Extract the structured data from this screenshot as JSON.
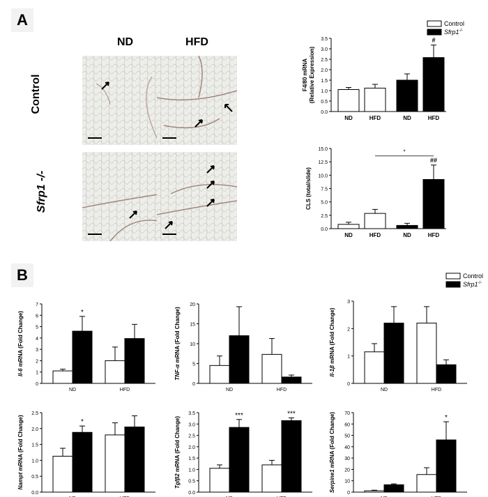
{
  "panelA": {
    "letter": "A",
    "col_headers": [
      "ND",
      "HFD"
    ],
    "row_headers": [
      "Control",
      "Sfrp1 -/-"
    ]
  },
  "panelB": {
    "letter": "B"
  },
  "legend": {
    "control": "Control",
    "sfrp1": "Sfrp1",
    "sfrp1_sup": "-/-"
  },
  "colors": {
    "control": "#ffffff",
    "sfrp1": "#000000"
  },
  "chart_data": [
    {
      "id": "f480",
      "type": "bar",
      "ylabel": [
        "F4/80 mRNA",
        "(Relative Expression)"
      ],
      "ylim": [
        0,
        3.5
      ],
      "yticks": [
        "0.0",
        "0.5",
        "1.0",
        "1.5",
        "2.0",
        "2.5",
        "3.0",
        "3.5"
      ],
      "bars": [
        {
          "label": "ND",
          "group": "control",
          "value": 1.05,
          "err": 0.1
        },
        {
          "label": "HFD",
          "group": "control",
          "value": 1.12,
          "err": 0.18
        },
        {
          "label": "ND",
          "group": "sfrp1",
          "value": 1.5,
          "err": 0.3
        },
        {
          "label": "HFD",
          "group": "sfrp1",
          "value": 2.58,
          "err": 0.6
        }
      ],
      "annotations": [
        {
          "bar": 3,
          "text": "#"
        }
      ]
    },
    {
      "id": "cls",
      "type": "bar",
      "ylabel": [
        "CLS (total/slide)"
      ],
      "ylim": [
        0,
        15
      ],
      "yticks": [
        "0.0",
        "2.5",
        "5.0",
        "7.5",
        "10.0",
        "12.5",
        "15.0"
      ],
      "bars": [
        {
          "label": "ND",
          "group": "control",
          "value": 0.8,
          "err": 0.4
        },
        {
          "label": "HFD",
          "group": "control",
          "value": 2.85,
          "err": 0.75
        },
        {
          "label": "ND",
          "group": "sfrp1",
          "value": 0.6,
          "err": 0.4
        },
        {
          "label": "HFD",
          "group": "sfrp1",
          "value": 9.2,
          "err": 2.7
        }
      ],
      "annotations": [
        {
          "bar": 3,
          "text": "##"
        }
      ],
      "bracket": {
        "from": 1,
        "to": 3,
        "y": 13.6,
        "text": "*"
      }
    },
    {
      "id": "il6",
      "type": "bar",
      "italic": "Il-6",
      "rest": " mRNA (Fold Change)",
      "ylim": [
        0,
        7
      ],
      "yticks": [
        "0",
        "1",
        "2",
        "3",
        "4",
        "5",
        "6",
        "7"
      ],
      "categories": [
        "ND",
        "HFD"
      ],
      "series": [
        {
          "name": "Control",
          "values": [
            1.1,
            2.0
          ],
          "err": [
            0.15,
            1.2
          ]
        },
        {
          "name": "Sfrp1",
          "values": [
            4.6,
            3.95
          ],
          "err": [
            1.3,
            1.25
          ]
        }
      ],
      "annotations": [
        {
          "cat": 0,
          "series": 1,
          "text": "*"
        }
      ]
    },
    {
      "id": "tnfa",
      "type": "bar",
      "italic": "TNF-α",
      "rest": " mRNA (Fold Change)",
      "ylim": [
        0,
        20
      ],
      "yticks": [
        "0",
        "5",
        "10",
        "15",
        "20"
      ],
      "categories": [
        "ND",
        "HFD"
      ],
      "series": [
        {
          "name": "Control",
          "values": [
            4.5,
            7.3
          ],
          "err": [
            2.4,
            4.0
          ]
        },
        {
          "name": "Sfrp1",
          "values": [
            12.0,
            1.6
          ],
          "err": [
            7.3,
            0.5
          ]
        }
      ],
      "annotations": []
    },
    {
      "id": "il1b",
      "type": "bar",
      "italic": "Il-1β",
      "rest": " mRNA (Fold Change)",
      "ylim": [
        0,
        3
      ],
      "yticks": [
        "0",
        "1",
        "2",
        "3"
      ],
      "categories": [
        "ND",
        "HFD"
      ],
      "series": [
        {
          "name": "Control",
          "values": [
            1.15,
            2.2
          ],
          "err": [
            0.3,
            0.6
          ]
        },
        {
          "name": "Sfrp1",
          "values": [
            2.2,
            0.68
          ],
          "err": [
            0.6,
            0.18
          ]
        }
      ],
      "annotations": []
    },
    {
      "id": "nampt",
      "type": "bar",
      "italic": "Nampt",
      "rest": " mRNA (Fold Change)",
      "ylim": [
        0,
        2.5
      ],
      "yticks": [
        "0.0",
        "0.5",
        "1.0",
        "1.5",
        "2.0",
        "2.5"
      ],
      "categories": [
        "ND",
        "HFD"
      ],
      "series": [
        {
          "name": "Control",
          "values": [
            1.13,
            1.8
          ],
          "err": [
            0.25,
            0.38
          ]
        },
        {
          "name": "Sfrp1",
          "values": [
            1.88,
            2.05
          ],
          "err": [
            0.2,
            0.35
          ]
        }
      ],
      "annotations": [
        {
          "cat": 0,
          "series": 1,
          "text": "*"
        }
      ]
    },
    {
      "id": "tgfb2",
      "type": "bar",
      "italic": "Tgfβ2",
      "rest": " mRNA (Fold Change)",
      "ylim": [
        0,
        3.5
      ],
      "yticks": [
        "0.0",
        "0.5",
        "1.0",
        "1.5",
        "2.0",
        "2.5",
        "3.0",
        "3.5"
      ],
      "categories": [
        "ND",
        "HFD"
      ],
      "series": [
        {
          "name": "Control",
          "values": [
            1.05,
            1.2
          ],
          "err": [
            0.15,
            0.2
          ]
        },
        {
          "name": "Sfrp1",
          "values": [
            2.85,
            3.15
          ],
          "err": [
            0.35,
            0.12
          ]
        }
      ],
      "annotations": [
        {
          "cat": 0,
          "series": 1,
          "text": "***"
        },
        {
          "cat": 1,
          "series": 1,
          "text": "***"
        }
      ]
    },
    {
      "id": "serpine1",
      "type": "bar",
      "italic": "Serpine1",
      "rest": " mRNA (Fold Change)",
      "ylim": [
        0,
        70
      ],
      "yticks": [
        "0",
        "10",
        "20",
        "30",
        "40",
        "50",
        "60",
        "70"
      ],
      "categories": [
        "ND",
        "HFD"
      ],
      "series": [
        {
          "name": "Control",
          "values": [
            1.2,
            15.5
          ],
          "err": [
            0.5,
            6.0
          ]
        },
        {
          "name": "Sfrp1",
          "values": [
            6.5,
            46.0
          ],
          "err": [
            0.8,
            16.0
          ]
        }
      ],
      "annotations": [
        {
          "cat": 1,
          "series": 1,
          "text": "*"
        }
      ]
    }
  ]
}
